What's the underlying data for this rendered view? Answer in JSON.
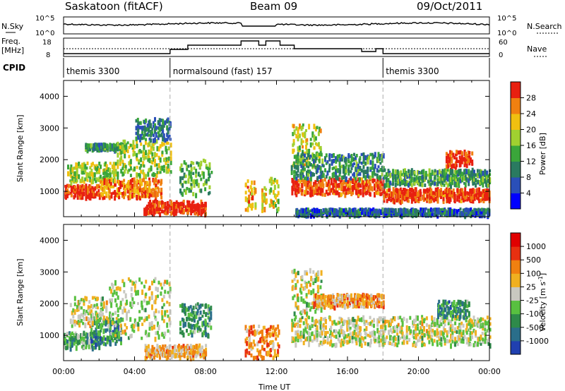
{
  "header": {
    "station": "Saskatoon (fitACF)",
    "beam": "Beam 09",
    "date": "09/Oct/2011"
  },
  "status_panels": {
    "nsky_label": "N.Sky",
    "nsky_ticks": [
      "10^5",
      "10^0"
    ],
    "nsearch_label": "N.Search",
    "nsearch_ticks": [
      "10^5",
      "10^0"
    ],
    "freq_label": "Freq.",
    "freq_unit": "[MHz]",
    "freq_ticks": [
      "18",
      "8"
    ],
    "nave_label": "Nave",
    "nave_ticks": [
      "60",
      "0"
    ],
    "cpid_label": "CPID",
    "modes": [
      {
        "name": "themis 3300",
        "start_h": 0,
        "end_h": 6
      },
      {
        "name": "normalsound (fast) 157",
        "start_h": 6,
        "end_h": 18
      },
      {
        "name": "themis 3300",
        "start_h": 18,
        "end_h": 24
      }
    ]
  },
  "power_colorbar": {
    "label": "Power [dB]",
    "ticks": [
      "28",
      "24",
      "20",
      "16",
      "12",
      "8",
      "4"
    ],
    "colors": [
      "#0000ff",
      "#2a4fb8",
      "#2a7a60",
      "#3aa63a",
      "#a0d030",
      "#f0c010",
      "#f08010",
      "#e82010"
    ]
  },
  "velocity_colorbar": {
    "label": "Velocity [m s",
    "label_sup": "-1",
    "label_end": "]",
    "ticks": [
      "1000",
      "500",
      "100",
      "25",
      "-25",
      "-100",
      "-500",
      "-1000"
    ],
    "colors": [
      "#2040b0",
      "#2a6e8a",
      "#2e8a4a",
      "#58c040",
      "#c8c8c0",
      "#f0b020",
      "#f08010",
      "#e83010",
      "#e00000"
    ]
  },
  "chart_data": [
    {
      "type": "heatmap",
      "title": "",
      "quantity": "Power",
      "xlabel": "Time UT",
      "ylabel": "Slant Range [km]",
      "xlim": [
        0,
        24
      ],
      "ylim": [
        200,
        4500
      ],
      "yticks": [
        "1000",
        "2000",
        "3000",
        "4000"
      ],
      "xticks": [
        "00:00",
        "04:00",
        "08:00",
        "12:00",
        "16:00",
        "20:00",
        "00:00"
      ],
      "dashed_lines_h": [
        6,
        18
      ],
      "bands": [
        {
          "t0": 0.0,
          "t1": 2.0,
          "r0": 800,
          "r1": 1200,
          "level": 0.95
        },
        {
          "t0": 0.2,
          "t1": 3.0,
          "r0": 1300,
          "r1": 1900,
          "level": 0.55
        },
        {
          "t0": 1.2,
          "t1": 3.5,
          "r0": 2300,
          "r1": 2500,
          "level": 0.35
        },
        {
          "t0": 2.0,
          "t1": 5.5,
          "r0": 800,
          "r1": 1400,
          "level": 0.8
        },
        {
          "t0": 3.0,
          "t1": 6.0,
          "r0": 1500,
          "r1": 2600,
          "level": 0.55
        },
        {
          "t0": 4.0,
          "t1": 6.0,
          "r0": 2600,
          "r1": 3300,
          "level": 0.3
        },
        {
          "t0": 4.5,
          "t1": 8.0,
          "r0": 300,
          "r1": 700,
          "level": 0.95
        },
        {
          "t0": 6.5,
          "t1": 8.3,
          "r0": 900,
          "r1": 2000,
          "level": 0.45
        },
        {
          "t0": 10.2,
          "t1": 10.8,
          "r0": 400,
          "r1": 1400,
          "level": 0.75
        },
        {
          "t0": 11.1,
          "t1": 11.4,
          "r0": 400,
          "r1": 1200,
          "level": 0.7
        },
        {
          "t0": 11.5,
          "t1": 12.1,
          "r0": 400,
          "r1": 1500,
          "level": 0.6
        },
        {
          "t0": 12.8,
          "t1": 14.5,
          "r0": 1800,
          "r1": 3100,
          "level": 0.6
        },
        {
          "t0": 12.8,
          "t1": 18.0,
          "r0": 900,
          "r1": 1400,
          "level": 0.9
        },
        {
          "t0": 12.8,
          "t1": 18.0,
          "r0": 1400,
          "r1": 2200,
          "level": 0.35
        },
        {
          "t0": 18.0,
          "t1": 24.0,
          "r0": 700,
          "r1": 1100,
          "level": 0.92
        },
        {
          "t0": 18.0,
          "t1": 24.0,
          "r0": 1200,
          "r1": 1700,
          "level": 0.4
        },
        {
          "t0": 21.5,
          "t1": 23.0,
          "r0": 1800,
          "r1": 2300,
          "level": 0.95
        },
        {
          "t0": 13.0,
          "t1": 24.0,
          "r0": 250,
          "r1": 450,
          "level": 0.25
        }
      ]
    },
    {
      "type": "heatmap",
      "title": "",
      "quantity": "Velocity",
      "xlabel": "Time UT",
      "ylabel": "Slant Range [km]",
      "xlim": [
        0,
        24
      ],
      "ylim": [
        200,
        4500
      ],
      "yticks": [
        "1000",
        "2000",
        "3000",
        "4000"
      ],
      "xticks": [
        "00:00",
        "04:00",
        "08:00",
        "12:00",
        "16:00",
        "20:00",
        "00:00"
      ],
      "dashed_lines_h": [
        6,
        18
      ],
      "bands": [
        {
          "t0": 0.0,
          "t1": 2.0,
          "r0": 600,
          "r1": 1100,
          "level": 0.35
        },
        {
          "t0": 1.5,
          "t1": 3.2,
          "r0": 700,
          "r1": 1600,
          "level": 0.25
        },
        {
          "t0": 0.3,
          "t1": 2.5,
          "r0": 1300,
          "r1": 2200,
          "level": 0.5
        },
        {
          "t0": 2.5,
          "t1": 6.0,
          "r0": 900,
          "r1": 2800,
          "level": 0.5
        },
        {
          "t0": 4.5,
          "t1": 8.0,
          "r0": 300,
          "r1": 700,
          "level": 0.62
        },
        {
          "t0": 6.5,
          "t1": 8.3,
          "r0": 1000,
          "r1": 2000,
          "level": 0.3
        },
        {
          "t0": 10.2,
          "t1": 12.1,
          "r0": 300,
          "r1": 1300,
          "level": 0.7
        },
        {
          "t0": 12.8,
          "t1": 14.5,
          "r0": 1700,
          "r1": 3100,
          "level": 0.5
        },
        {
          "t0": 12.8,
          "t1": 24.0,
          "r0": 700,
          "r1": 1600,
          "level": 0.5
        },
        {
          "t0": 21.0,
          "t1": 22.8,
          "r0": 1600,
          "r1": 2100,
          "level": 0.28
        },
        {
          "t0": 14.0,
          "t1": 18.0,
          "r0": 1900,
          "r1": 2300,
          "level": 0.66
        }
      ]
    }
  ]
}
